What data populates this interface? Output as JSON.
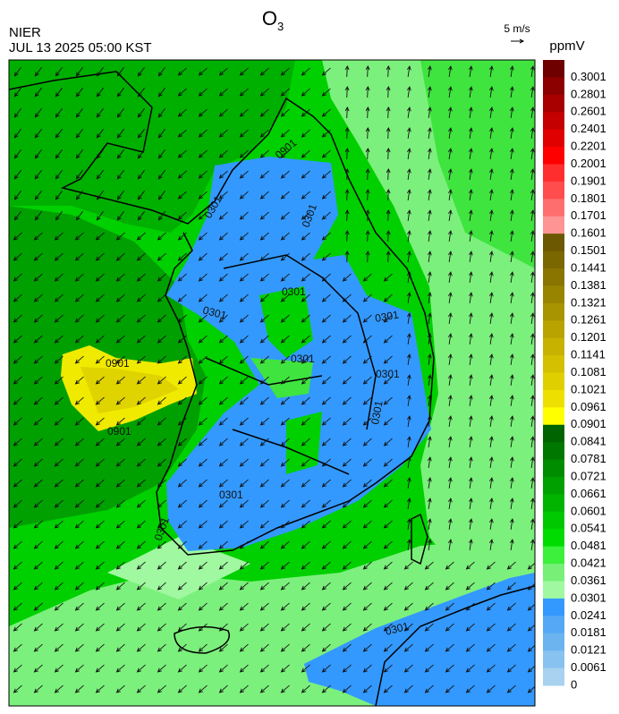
{
  "header": {
    "title_main": "O",
    "title_sub": "3",
    "agency": "NIER",
    "timestamp": "JUL 13 2025 05:00 KST",
    "wind_scale": "5 m/s",
    "unit": "ppmV"
  },
  "colorbar": {
    "levels": [
      {
        "label": "0.3001",
        "color": "#6e0000"
      },
      {
        "label": "0.2801",
        "color": "#8c0000"
      },
      {
        "label": "0.2601",
        "color": "#a80000"
      },
      {
        "label": "0.2401",
        "color": "#c40000"
      },
      {
        "label": "0.2201",
        "color": "#e00000"
      },
      {
        "label": "0.2001",
        "color": "#ff0000"
      },
      {
        "label": "0.1901",
        "color": "#ff2e2e"
      },
      {
        "label": "0.1801",
        "color": "#ff4c4c"
      },
      {
        "label": "0.1701",
        "color": "#ff6e6e"
      },
      {
        "label": "0.1601",
        "color": "#ff9494"
      },
      {
        "label": "0.1501",
        "color": "#6b5800"
      },
      {
        "label": "0.1441",
        "color": "#7a6700"
      },
      {
        "label": "0.1381",
        "color": "#897500"
      },
      {
        "label": "0.1321",
        "color": "#998400"
      },
      {
        "label": "0.1261",
        "color": "#a89300"
      },
      {
        "label": "0.1201",
        "color": "#b8a300"
      },
      {
        "label": "0.1141",
        "color": "#c7b200"
      },
      {
        "label": "0.1081",
        "color": "#d4c000"
      },
      {
        "label": "0.1021",
        "color": "#e0cf00"
      },
      {
        "label": "0.0961",
        "color": "#ede000"
      },
      {
        "label": "0.0901",
        "color": "#ffff00"
      },
      {
        "label": "0.0841",
        "color": "#006400"
      },
      {
        "label": "0.0781",
        "color": "#007800"
      },
      {
        "label": "0.0721",
        "color": "#008c00"
      },
      {
        "label": "0.0661",
        "color": "#00a000"
      },
      {
        "label": "0.0601",
        "color": "#00b400"
      },
      {
        "label": "0.0541",
        "color": "#00c800"
      },
      {
        "label": "0.0481",
        "color": "#00dc00"
      },
      {
        "label": "0.0421",
        "color": "#3cf03c"
      },
      {
        "label": "0.0361",
        "color": "#78f078"
      },
      {
        "label": "0.0301",
        "color": "#a0f8a0"
      },
      {
        "label": "0.0241",
        "color": "#3399ff"
      },
      {
        "label": "0.0181",
        "color": "#55a8f5"
      },
      {
        "label": "0.0121",
        "color": "#6cb4f0"
      },
      {
        "label": "0.0061",
        "color": "#88c2f0"
      },
      {
        "label": "0",
        "color": "#a8d2f0"
      }
    ]
  },
  "map": {
    "contour_labels": [
      "0901",
      "0901",
      "0901",
      "0301",
      "0301",
      "0301",
      "0301",
      "0301",
      "0301",
      "0301",
      "0301",
      "0301",
      "0301",
      "0301"
    ]
  }
}
